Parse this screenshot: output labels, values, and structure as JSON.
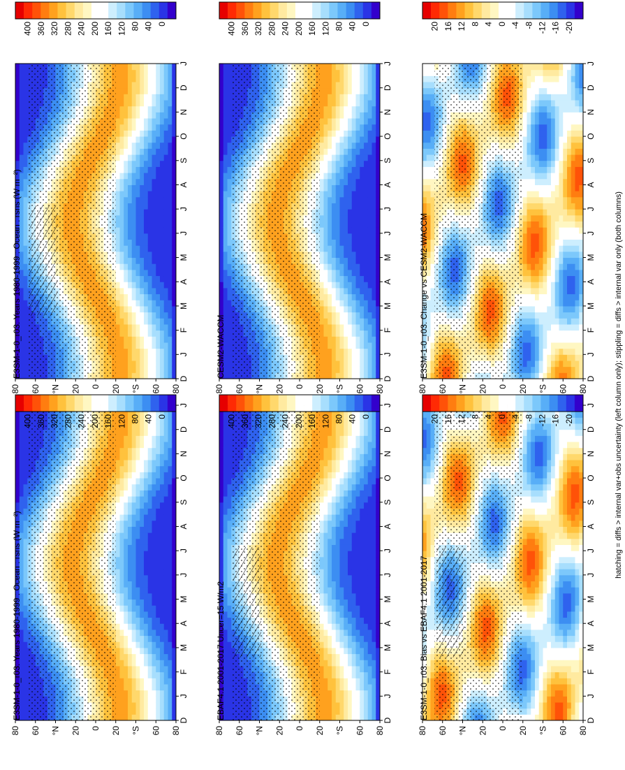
{
  "figure": {
    "footnote": "hatching = diffs > internal var+obs uncertainty (left column only); stippling = diffs > internal var only (both columns)"
  },
  "colors": {
    "abs_scale": [
      "#3300cc",
      "#2a34e6",
      "#2f62ee",
      "#3c8ef2",
      "#58aef7",
      "#7cc8fb",
      "#a7defd",
      "#cdeefe",
      "#ffffff",
      "#ffffff",
      "#fff7c2",
      "#ffeaa0",
      "#ffd86c",
      "#ffc23d",
      "#ffa11e",
      "#ff7d10",
      "#ff5208",
      "#ff2a04",
      "#e60000"
    ],
    "diff_scale": [
      "#3300cc",
      "#2a34e6",
      "#2f62ee",
      "#3c8ef2",
      "#58aef7",
      "#7cc8fb",
      "#a7defd",
      "#cdeefe",
      "#ffffff",
      "#ffffff",
      "#fff7c2",
      "#ffeaa0",
      "#ffd86c",
      "#ffc23d",
      "#ffa11e",
      "#ff7d10",
      "#ff5208",
      "#ff2a04",
      "#e60000"
    ]
  },
  "chart_data": [
    {
      "type": "heatmap",
      "title": "E3SM-1-0_r03: Years 1980-1999 : Ocean : rsns (W m⁻²)",
      "x_ticks": [
        "D",
        "J",
        "F",
        "M",
        "A",
        "M",
        "J",
        "J",
        "A",
        "S",
        "O",
        "N",
        "D",
        "J"
      ],
      "y_ticks": [
        "80",
        "60",
        "°N",
        "20",
        "0",
        "20",
        "°S",
        "60",
        "80"
      ],
      "y_values": [
        80,
        60,
        40,
        20,
        0,
        -20,
        -40,
        -60,
        -80
      ],
      "colorbar_ticks": [
        "400",
        "360",
        "320",
        "280",
        "240",
        "200",
        "160",
        "120",
        "80",
        "40",
        "0"
      ],
      "colorbar_values": [
        400,
        360,
        320,
        280,
        240,
        200,
        160,
        120,
        80,
        40,
        0
      ],
      "zlim": [
        0,
        420
      ],
      "stippling": true,
      "hatching": true
    },
    {
      "type": "heatmap",
      "title": "E3SM-1-0_r03: Years 1980-1999 : Ocean : rsns (W m⁻²)",
      "x_ticks": [
        "D",
        "J",
        "F",
        "M",
        "A",
        "M",
        "J",
        "J",
        "A",
        "S",
        "O",
        "N",
        "D",
        "J"
      ],
      "y_ticks": [
        "80",
        "60",
        "°N",
        "20",
        "0",
        "20",
        "°S",
        "60",
        "80"
      ],
      "y_values": [
        80,
        60,
        40,
        20,
        0,
        -20,
        -40,
        -60,
        -80
      ],
      "colorbar_ticks": [
        "400",
        "360",
        "320",
        "280",
        "240",
        "200",
        "160",
        "120",
        "80",
        "40",
        "0"
      ],
      "colorbar_values": [
        400,
        360,
        320,
        280,
        240,
        200,
        160,
        120,
        80,
        40,
        0
      ],
      "zlim": [
        0,
        420
      ],
      "stippling": true,
      "hatching": false
    },
    {
      "type": "heatmap",
      "title": "EBAF4.1 2001-2017 Uncer=15 W/m2",
      "x_ticks": [
        "D",
        "J",
        "F",
        "M",
        "A",
        "M",
        "J",
        "J",
        "A",
        "S",
        "O",
        "N",
        "D",
        "J"
      ],
      "y_ticks": [
        "80",
        "60",
        "°N",
        "20",
        "0",
        "20",
        "°S",
        "60",
        "80"
      ],
      "y_values": [
        80,
        60,
        40,
        20,
        0,
        -20,
        -40,
        -60,
        -80
      ],
      "colorbar_ticks": [
        "400",
        "360",
        "320",
        "280",
        "240",
        "200",
        "160",
        "120",
        "80",
        "40",
        "0"
      ],
      "colorbar_values": [
        400,
        360,
        320,
        280,
        240,
        200,
        160,
        120,
        80,
        40,
        0
      ],
      "zlim": [
        0,
        420
      ],
      "stippling": true,
      "hatching": true
    },
    {
      "type": "heatmap",
      "title": "CESM2-WACCM",
      "x_ticks": [
        "D",
        "J",
        "F",
        "M",
        "A",
        "M",
        "J",
        "J",
        "A",
        "S",
        "O",
        "N",
        "D",
        "J"
      ],
      "y_ticks": [
        "80",
        "60",
        "°N",
        "20",
        "0",
        "20",
        "°S",
        "60",
        "80"
      ],
      "y_values": [
        80,
        60,
        40,
        20,
        0,
        -20,
        -40,
        -60,
        -80
      ],
      "colorbar_ticks": [
        "400",
        "360",
        "320",
        "280",
        "240",
        "200",
        "160",
        "120",
        "80",
        "40",
        "0"
      ],
      "colorbar_values": [
        400,
        360,
        320,
        280,
        240,
        200,
        160,
        120,
        80,
        40,
        0
      ],
      "zlim": [
        0,
        420
      ],
      "stippling": true,
      "hatching": false
    },
    {
      "type": "heatmap",
      "title": "E3SM-1-0_r03: Bias vs EBAF4.1 2001-2017",
      "x_ticks": [
        "D",
        "J",
        "F",
        "M",
        "A",
        "M",
        "J",
        "J",
        "A",
        "S",
        "O",
        "N",
        "D",
        "J"
      ],
      "y_ticks": [
        "80",
        "60",
        "°N",
        "20",
        "0",
        "20",
        "°S",
        "60",
        "80"
      ],
      "y_values": [
        80,
        60,
        40,
        20,
        0,
        -20,
        -40,
        -60,
        -80
      ],
      "colorbar_ticks": [
        "20",
        "16",
        "12",
        "8",
        "4",
        "0",
        "-4",
        "-8",
        "-12",
        "-16",
        "-20"
      ],
      "colorbar_values": [
        20,
        16,
        12,
        8,
        4,
        0,
        -4,
        -8,
        -12,
        -16,
        -20
      ],
      "zlim": [
        -22,
        22
      ],
      "stippling": true,
      "hatching": true
    },
    {
      "type": "heatmap",
      "title": "E3SM-1-0_r03: Change vs CESM2-WACCM",
      "x_ticks": [
        "D",
        "J",
        "F",
        "M",
        "A",
        "M",
        "J",
        "J",
        "A",
        "S",
        "O",
        "N",
        "D",
        "J"
      ],
      "y_ticks": [
        "80",
        "60",
        "°N",
        "20",
        "0",
        "20",
        "°S",
        "60",
        "80"
      ],
      "y_values": [
        80,
        60,
        40,
        20,
        0,
        -20,
        -40,
        -60,
        -80
      ],
      "colorbar_ticks": [
        "20",
        "16",
        "12",
        "8",
        "4",
        "0",
        "-4",
        "-8",
        "-12",
        "-16",
        "-20"
      ],
      "colorbar_values": [
        20,
        16,
        12,
        8,
        4,
        0,
        -4,
        -8,
        -12,
        -16,
        -20
      ],
      "zlim": [
        -22,
        22
      ],
      "stippling": true,
      "hatching": false
    }
  ]
}
